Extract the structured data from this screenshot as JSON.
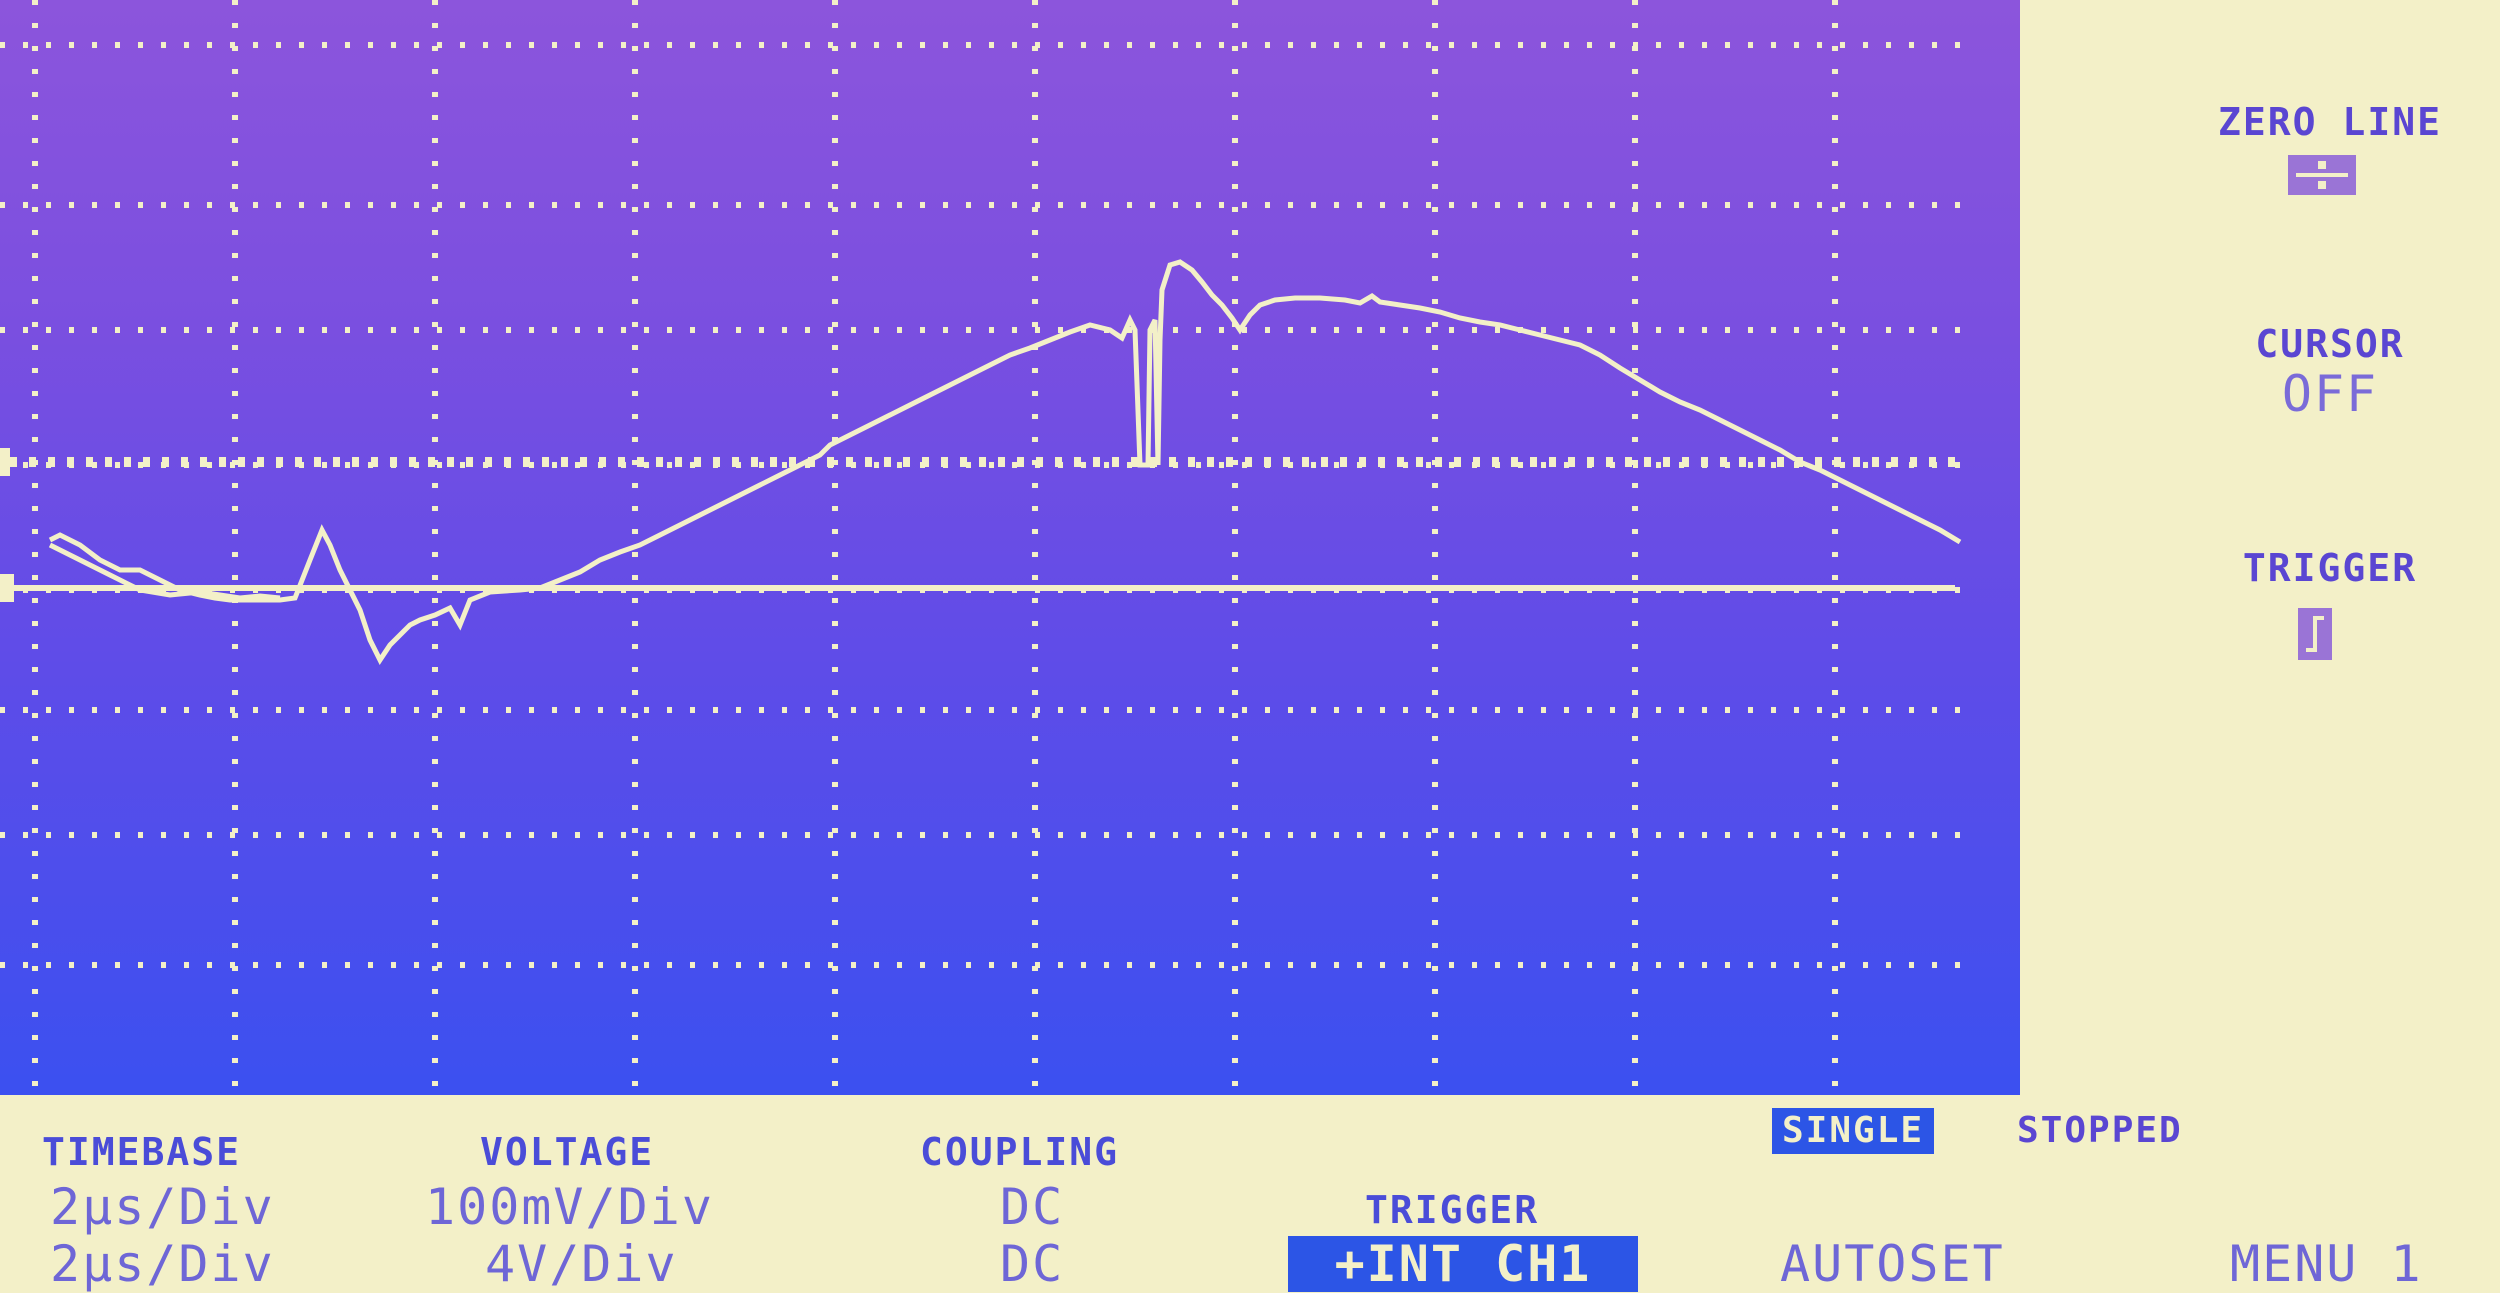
{
  "side_panel": {
    "zero_line": {
      "label": "ZERO LINE",
      "icon": "zero-line-icon"
    },
    "cursor": {
      "label": "CURSOR",
      "value": "OFF"
    },
    "trigger": {
      "label": "TRIGGER",
      "icon": "trigger-slope-icon"
    }
  },
  "status": {
    "mode": "SINGLE",
    "state": "STOPPED"
  },
  "settings": {
    "timebase": {
      "header": "TIMEBASE",
      "ch1": "2μs/Div",
      "ch2": "2μs/Div"
    },
    "voltage": {
      "header": "VOLTAGE",
      "ch1": "100mV/Div",
      "ch2": "4V/Div"
    },
    "coupling": {
      "header": "COUPLING",
      "ch1": "DC",
      "ch2": "DC"
    },
    "trigger": {
      "header": "TRIGGER",
      "value": "+INT CH1"
    }
  },
  "menu": {
    "autoset": "AUTOSET",
    "menu1": "MENU 1"
  },
  "colors": {
    "trace": "#f3f0c8",
    "grid": "#f3f0c8",
    "panel_bg": "#f3f0c8",
    "text": "#5a46d2",
    "highlight": "#2c55e6"
  }
}
